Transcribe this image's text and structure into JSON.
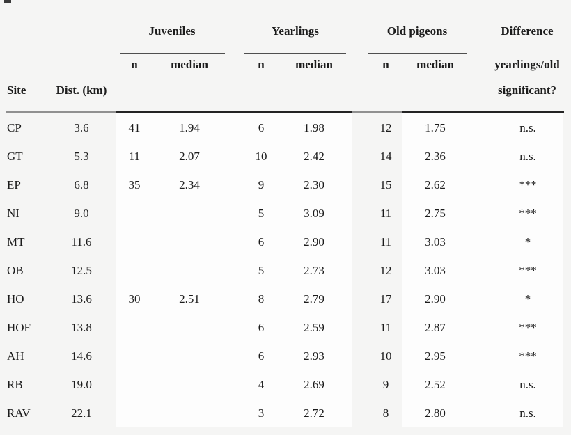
{
  "page_background": "#f5f5f4",
  "band_color": "#fdfdfd",
  "text_color": "#1c1c1c",
  "header": {
    "site": "Site",
    "dist": "Dist. (km)",
    "juveniles": "Juveniles",
    "yearlings": "Yearlings",
    "old_pigeons": "Old pigeons",
    "juv_n": "n",
    "juv_median": "median",
    "year_n": "n",
    "year_median": "median",
    "old_n": "n",
    "old_median": "median",
    "difference_line1": "Difference",
    "difference_line2": "yearlings/old",
    "difference_line3": "significant?"
  },
  "rows": [
    {
      "site": "CP",
      "dist": "3.6",
      "juv_n": "41",
      "juv_median": "1.94",
      "year_n": "6",
      "year_median": "1.98",
      "old_n": "12",
      "old_median": "1.75",
      "significance": "n.s."
    },
    {
      "site": "GT",
      "dist": "5.3",
      "juv_n": "11",
      "juv_median": "2.07",
      "year_n": "10",
      "year_median": "2.42",
      "old_n": "14",
      "old_median": "2.36",
      "significance": "n.s."
    },
    {
      "site": "EP",
      "dist": "6.8",
      "juv_n": "35",
      "juv_median": "2.34",
      "year_n": "9",
      "year_median": "2.30",
      "old_n": "15",
      "old_median": "2.62",
      "significance": "***"
    },
    {
      "site": "NI",
      "dist": "9.0",
      "juv_n": "",
      "juv_median": "",
      "year_n": "5",
      "year_median": "3.09",
      "old_n": "11",
      "old_median": "2.75",
      "significance": "***"
    },
    {
      "site": "MT",
      "dist": "11.6",
      "juv_n": "",
      "juv_median": "",
      "year_n": "6",
      "year_median": "2.90",
      "old_n": "11",
      "old_median": "3.03",
      "significance": "*"
    },
    {
      "site": "OB",
      "dist": "12.5",
      "juv_n": "",
      "juv_median": "",
      "year_n": "5",
      "year_median": "2.73",
      "old_n": "12",
      "old_median": "3.03",
      "significance": "***"
    },
    {
      "site": "HO",
      "dist": "13.6",
      "juv_n": "30",
      "juv_median": "2.51",
      "year_n": "8",
      "year_median": "2.79",
      "old_n": "17",
      "old_median": "2.90",
      "significance": "*"
    },
    {
      "site": "HOF",
      "dist": "13.8",
      "juv_n": "",
      "juv_median": "",
      "year_n": "6",
      "year_median": "2.59",
      "old_n": "11",
      "old_median": "2.87",
      "significance": "***"
    },
    {
      "site": "AH",
      "dist": "14.6",
      "juv_n": "",
      "juv_median": "",
      "year_n": "6",
      "year_median": "2.93",
      "old_n": "10",
      "old_median": "2.95",
      "significance": "***"
    },
    {
      "site": "RB",
      "dist": "19.0",
      "juv_n": "",
      "juv_median": "",
      "year_n": "4",
      "year_median": "2.69",
      "old_n": "9",
      "old_median": "2.52",
      "significance": "n.s."
    },
    {
      "site": "RAV",
      "dist": "22.1",
      "juv_n": "",
      "juv_median": "",
      "year_n": "3",
      "year_median": "2.72",
      "old_n": "8",
      "old_median": "2.80",
      "significance": "n.s."
    }
  ],
  "chart_data": {
    "type": "table",
    "columns": [
      "Site",
      "Dist. (km)",
      "Juveniles n",
      "Juveniles median",
      "Yearlings n",
      "Yearlings median",
      "Old pigeons n",
      "Old pigeons median",
      "Difference yearlings/old significant?"
    ],
    "rows": [
      [
        "CP",
        "3.6",
        "41",
        "1.94",
        "6",
        "1.98",
        "12",
        "1.75",
        "n.s."
      ],
      [
        "GT",
        "5.3",
        "11",
        "2.07",
        "10",
        "2.42",
        "14",
        "2.36",
        "n.s."
      ],
      [
        "EP",
        "6.8",
        "35",
        "2.34",
        "9",
        "2.30",
        "15",
        "2.62",
        "***"
      ],
      [
        "NI",
        "9.0",
        "",
        "",
        "5",
        "3.09",
        "11",
        "2.75",
        "***"
      ],
      [
        "MT",
        "11.6",
        "",
        "",
        "6",
        "2.90",
        "11",
        "3.03",
        "*"
      ],
      [
        "OB",
        "12.5",
        "",
        "",
        "5",
        "2.73",
        "12",
        "3.03",
        "***"
      ],
      [
        "HO",
        "13.6",
        "30",
        "2.51",
        "8",
        "2.79",
        "17",
        "2.90",
        "*"
      ],
      [
        "HOF",
        "13.8",
        "",
        "",
        "6",
        "2.59",
        "11",
        "2.87",
        "***"
      ],
      [
        "AH",
        "14.6",
        "",
        "",
        "6",
        "2.93",
        "10",
        "2.95",
        "***"
      ],
      [
        "RB",
        "19.0",
        "",
        "",
        "4",
        "2.69",
        "9",
        "2.52",
        "n.s."
      ],
      [
        "RAV",
        "22.1",
        "",
        "",
        "3",
        "2.72",
        "8",
        "2.80",
        "n.s."
      ]
    ]
  }
}
